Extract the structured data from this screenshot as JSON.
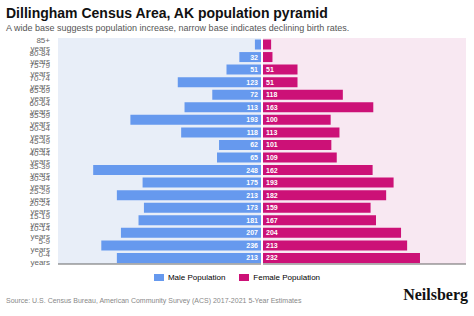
{
  "chart_data": {
    "type": "bar",
    "orientation": "horizontal",
    "title": "Dillingham Census Area, AK population pyramid",
    "subtitle": "A wide base suggests population increase, narrow base indicates declining birth rates.",
    "annotations": [
      "Source: U.S. Census Bureau, American Community Survey (ACS) 2017-2021 5-Year Estimates",
      "Neilsberg"
    ],
    "categories": [
      "0-4 years",
      "5-9 years",
      "10-14 years",
      "15-19 years",
      "20-24 years",
      "25-29 years",
      "30-34 years",
      "35-39 years",
      "40-44 years",
      "45-49 years",
      "50-54 years",
      "55-59 years",
      "60-64 years",
      "65-69 years",
      "70-74 years",
      "75-79 years",
      "80-84 years",
      "85+ years"
    ],
    "series": [
      {
        "name": "Male Population",
        "color": "#6699EE",
        "values": [
          213,
          236,
          207,
          181,
          173,
          213,
          175,
          248,
          65,
          62,
          118,
          193,
          113,
          72,
          123,
          51,
          32,
          9
        ],
        "value_labels": [
          "213",
          "236",
          "207",
          "181",
          "173",
          "213",
          "175",
          "248",
          "65",
          "62",
          "118",
          "193",
          "113",
          "72",
          "123",
          "51",
          "32",
          null
        ]
      },
      {
        "name": "Female Population",
        "color": "#CC1177",
        "values": [
          232,
          213,
          204,
          167,
          159,
          182,
          193,
          162,
          109,
          101,
          113,
          100,
          163,
          118,
          51,
          51,
          14,
          12
        ],
        "value_labels": [
          "232",
          "213",
          "204",
          "167",
          "159",
          "182",
          "193",
          "162",
          "109",
          "101",
          "113",
          "100",
          "163",
          "118",
          "51",
          "51",
          null,
          null
        ]
      }
    ],
    "xlim": [
      0,
      300
    ],
    "tick_labels": "y",
    "data_labels": true,
    "legend": "bottom"
  }
}
